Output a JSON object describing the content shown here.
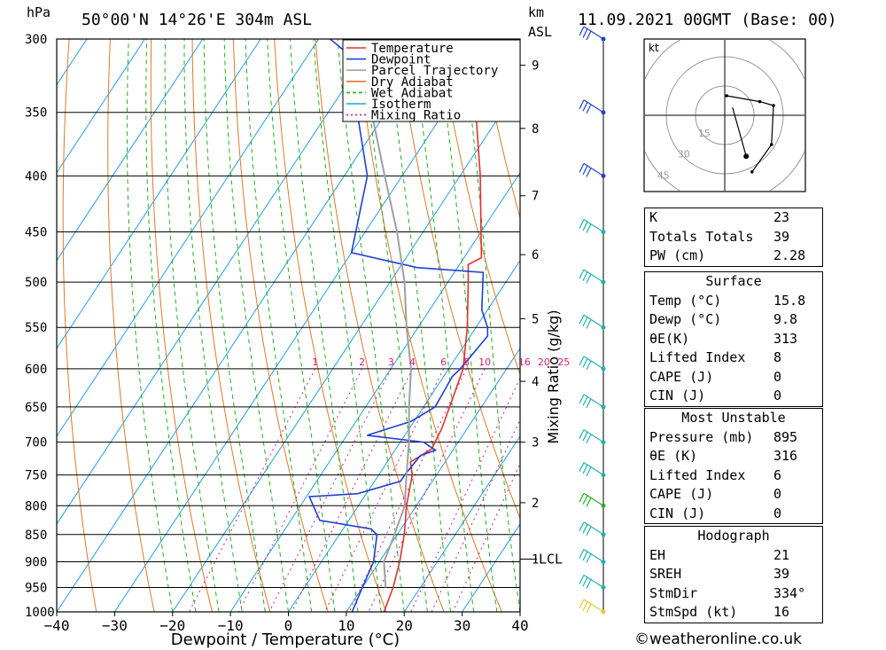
{
  "header": {
    "pressure_unit": "hPa",
    "location": "50°00'N  14°26'E  304m  ASL",
    "height_unit_top": "km",
    "height_unit_bottom": "ASL",
    "datetime": "11.09.2021  00GMT  (Base: 00)"
  },
  "footer": {
    "copyright": "©weatheronline.co.uk"
  },
  "chart_data": {
    "type": "line",
    "subtype": "skew-T log-P diagram",
    "xlabel": "Dewpoint / Temperature (°C)",
    "ylabel": "hPa",
    "xlim": [
      -40,
      40
    ],
    "x_ticks": [
      -40,
      -30,
      -20,
      -10,
      0,
      10,
      20,
      30,
      40
    ],
    "p_ticks": [
      300,
      350,
      400,
      450,
      500,
      550,
      600,
      650,
      700,
      750,
      800,
      850,
      900,
      950,
      1000
    ],
    "height_km_ticks": [
      {
        "label": "9",
        "p": 317
      },
      {
        "label": "8",
        "p": 362
      },
      {
        "label": "7",
        "p": 417
      },
      {
        "label": "6",
        "p": 472
      },
      {
        "label": "5",
        "p": 540
      },
      {
        "label": "4",
        "p": 616
      },
      {
        "label": "3",
        "p": 700
      },
      {
        "label": "2",
        "p": 795
      },
      {
        "label": "1",
        "p": 895
      }
    ],
    "lcl_label": "LCL",
    "lcl_p": 895,
    "mixing_ratio_axis_label": "Mixing Ratio (g/kg)",
    "mixing_ratio_values": [
      "1",
      "2",
      "3",
      "4",
      "6",
      "8",
      "10",
      "16",
      "20",
      "25"
    ],
    "legend_position": "top-right",
    "series": [
      {
        "name": "Temperature",
        "color": "#e03030",
        "points": [
          [
            1000,
            16.5
          ],
          [
            950,
            15.3
          ],
          [
            900,
            13.5
          ],
          [
            850,
            11.2
          ],
          [
            800,
            8.3
          ],
          [
            750,
            5.8
          ],
          [
            730,
            4.0
          ],
          [
            710,
            6.2
          ],
          [
            700,
            6.0
          ],
          [
            680,
            5.6
          ],
          [
            650,
            4.5
          ],
          [
            600,
            2.5
          ],
          [
            550,
            -1.5
          ],
          [
            500,
            -6.5
          ],
          [
            482,
            -8.5
          ],
          [
            475,
            -7.0
          ],
          [
            450,
            -10.0
          ],
          [
            400,
            -16.5
          ],
          [
            350,
            -24.5
          ],
          [
            300,
            -33.0
          ]
        ]
      },
      {
        "name": "Dewpoint",
        "color": "#2040d0",
        "points": [
          [
            1000,
            11.0
          ],
          [
            950,
            10.0
          ],
          [
            900,
            9.0
          ],
          [
            850,
            6.5
          ],
          [
            840,
            4.8
          ],
          [
            825,
            -5.0
          ],
          [
            785,
            -9.5
          ],
          [
            780,
            -1.5
          ],
          [
            760,
            4.5
          ],
          [
            750,
            4.5
          ],
          [
            720,
            5.0
          ],
          [
            712,
            7.0
          ],
          [
            700,
            4.0
          ],
          [
            690,
            -6.5
          ],
          [
            670,
            -0.5
          ],
          [
            650,
            2.0
          ],
          [
            610,
            1.5
          ],
          [
            600,
            2.0
          ],
          [
            560,
            3.0
          ],
          [
            550,
            2.0
          ],
          [
            530,
            -1.0
          ],
          [
            490,
            -5.0
          ],
          [
            485,
            -17.0
          ],
          [
            470,
            -30.0
          ],
          [
            400,
            -36.0
          ],
          [
            350,
            -45.0
          ],
          [
            310,
            -53.0
          ],
          [
            300,
            -58.0
          ]
        ]
      },
      {
        "name": "Parcel Trajectory",
        "color": "#a0a0a0",
        "points": [
          [
            950,
            14.0
          ],
          [
            900,
            10.8
          ],
          [
            850,
            9.5
          ],
          [
            800,
            8.0
          ],
          [
            750,
            4.8
          ],
          [
            700,
            1.5
          ],
          [
            650,
            -2.5
          ],
          [
            600,
            -6.5
          ],
          [
            550,
            -12.0
          ],
          [
            500,
            -17.5
          ],
          [
            450,
            -24.5
          ],
          [
            400,
            -33.0
          ],
          [
            350,
            -42.5
          ],
          [
            300,
            -54.0
          ]
        ]
      },
      {
        "name": "Dry Adiabat",
        "color": "#e07828"
      },
      {
        "name": "Wet Adiabat",
        "color": "#20b020"
      },
      {
        "name": "Isotherm",
        "color": "#20a0e0"
      },
      {
        "name": "Mixing Ratio",
        "color": "#d02080"
      }
    ],
    "wind_barbs": [
      {
        "p": 300,
        "color": "#2040d0"
      },
      {
        "p": 350,
        "color": "#2040d0"
      },
      {
        "p": 400,
        "color": "#2040d0"
      },
      {
        "p": 450,
        "color": "#20b0b0"
      },
      {
        "p": 500,
        "color": "#20b0b0"
      },
      {
        "p": 550,
        "color": "#20b0b0"
      },
      {
        "p": 600,
        "color": "#20b0b0"
      },
      {
        "p": 650,
        "color": "#20b0b0"
      },
      {
        "p": 700,
        "color": "#20b0b0"
      },
      {
        "p": 750,
        "color": "#20b0b0"
      },
      {
        "p": 800,
        "color": "#20b020"
      },
      {
        "p": 850,
        "color": "#20b0b0"
      },
      {
        "p": 900,
        "color": "#20b0b0"
      },
      {
        "p": 950,
        "color": "#20b0b0"
      },
      {
        "p": 1000,
        "color": "#e8c830"
      }
    ],
    "hodograph": {
      "unit_label": "kt",
      "ring_labels": [
        "15",
        "30",
        "45"
      ],
      "trace": [
        [
          0.5,
          5.0
        ],
        [
          9.0,
          3.5
        ],
        [
          12.5,
          2.5
        ],
        [
          12.0,
          -7.5
        ],
        [
          7.0,
          -14.5
        ]
      ],
      "storm_motion": [
        5.5,
        -10.5
      ]
    }
  },
  "indices": [
    {
      "label": "K",
      "value": "23"
    },
    {
      "label": "Totals Totals",
      "value": "39"
    },
    {
      "label": "PW (cm)",
      "value": "2.28"
    }
  ],
  "surface": {
    "title": "Surface",
    "rows": [
      {
        "label": "Temp (°C)",
        "value": "15.8"
      },
      {
        "label": "Dewp (°C)",
        "value": "9.8"
      },
      {
        "label": "θE(K)",
        "value": "313"
      },
      {
        "label": "Lifted Index",
        "value": "8"
      },
      {
        "label": "CAPE (J)",
        "value": "0"
      },
      {
        "label": "CIN (J)",
        "value": "0"
      }
    ]
  },
  "most_unstable": {
    "title": "Most Unstable",
    "rows": [
      {
        "label": "Pressure (mb)",
        "value": "895"
      },
      {
        "label": "θE (K)",
        "value": "316"
      },
      {
        "label": "Lifted Index",
        "value": "6"
      },
      {
        "label": "CAPE (J)",
        "value": "0"
      },
      {
        "label": "CIN (J)",
        "value": "0"
      }
    ]
  },
  "hodograph_stats": {
    "title": "Hodograph",
    "rows": [
      {
        "label": "EH",
        "value": "21"
      },
      {
        "label": "SREH",
        "value": "39"
      },
      {
        "label": "StmDir",
        "value": "334°"
      },
      {
        "label": "StmSpd (kt)",
        "value": "16"
      }
    ]
  }
}
